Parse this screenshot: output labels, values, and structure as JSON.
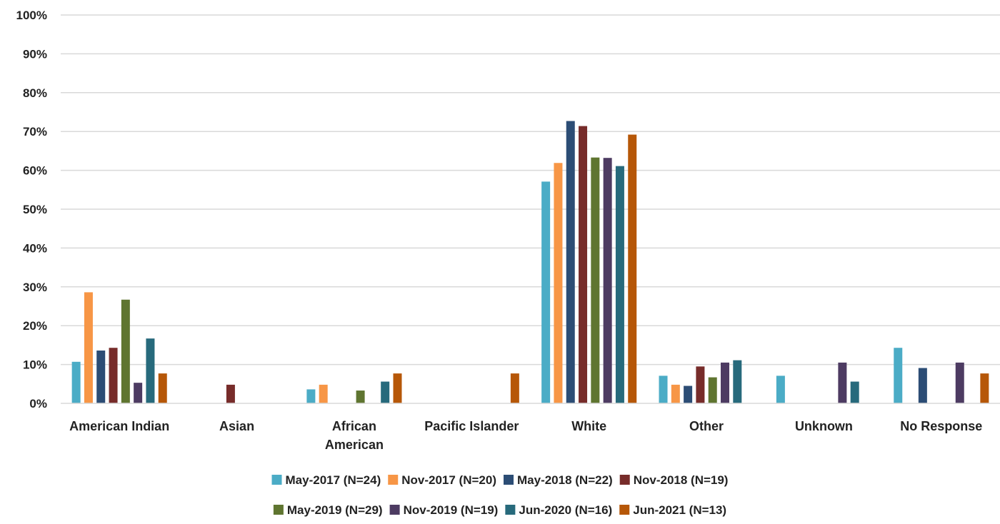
{
  "chart_data": {
    "type": "bar",
    "title": "",
    "xlabel": "",
    "ylabel": "",
    "ylim": [
      0,
      100
    ],
    "y_ticks": [
      "0%",
      "10%",
      "20%",
      "30%",
      "40%",
      "50%",
      "60%",
      "70%",
      "80%",
      "90%",
      "100%"
    ],
    "grid": true,
    "legend_position": "bottom",
    "categories": [
      [
        "American Indian"
      ],
      [
        "Asian"
      ],
      [
        "African",
        "American"
      ],
      [
        "Pacific Islander"
      ],
      [
        "White"
      ],
      [
        "Other"
      ],
      [
        "Unknown"
      ],
      [
        "No Response"
      ]
    ],
    "series": [
      {
        "name": "May-2017 (N=24)",
        "color": "#4BACC6",
        "values": [
          10.7,
          0,
          3.6,
          0,
          57.1,
          7.1,
          7.1,
          14.3
        ]
      },
      {
        "name": "Nov-2017 (N=20)",
        "color": "#F79646",
        "values": [
          28.6,
          0,
          4.8,
          0,
          61.9,
          4.8,
          0,
          0
        ]
      },
      {
        "name": "May-2018 (N=22)",
        "color": "#2C4D75",
        "values": [
          13.6,
          0,
          0,
          0,
          72.7,
          4.5,
          0,
          9.1
        ]
      },
      {
        "name": "Nov-2018 (N=19)",
        "color": "#772C2A",
        "values": [
          14.3,
          4.8,
          0,
          0,
          71.4,
          9.5,
          0,
          0
        ]
      },
      {
        "name": "May-2019 (N=29)",
        "color": "#5F7530",
        "values": [
          26.7,
          0,
          3.3,
          0,
          63.3,
          6.7,
          0,
          0
        ]
      },
      {
        "name": "Nov-2019 (N=19)",
        "color": "#4D3B62",
        "values": [
          5.3,
          0,
          0,
          0,
          63.2,
          10.5,
          10.5,
          10.5
        ]
      },
      {
        "name": "Jun-2020 (N=16)",
        "color": "#276A7C",
        "values": [
          16.7,
          0,
          5.6,
          0,
          61.1,
          11.1,
          5.6,
          0
        ]
      },
      {
        "name": "Jun-2021 (N=13)",
        "color": "#B65708",
        "values": [
          7.7,
          0,
          7.7,
          7.7,
          69.2,
          0,
          0,
          7.7
        ]
      }
    ]
  }
}
